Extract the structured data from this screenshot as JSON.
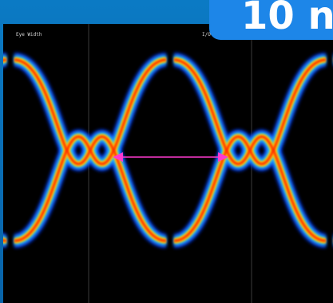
{
  "badge": {
    "text": "10 n"
  },
  "scope": {
    "top_left_label": "Eye Width",
    "top_mid_label": "I/O"
  },
  "chart_data": {
    "type": "eye-diagram",
    "title": "",
    "xlabel": "",
    "ylabel": "",
    "annotation": "eye width (magenta double-headed arrow)",
    "colors": {
      "high": "#ff2a00",
      "mid": "#ffd400",
      "low": "#23c4ff",
      "edge": "#0b3bff",
      "arrow": "#ff3ad0",
      "background": "#000000"
    }
  }
}
